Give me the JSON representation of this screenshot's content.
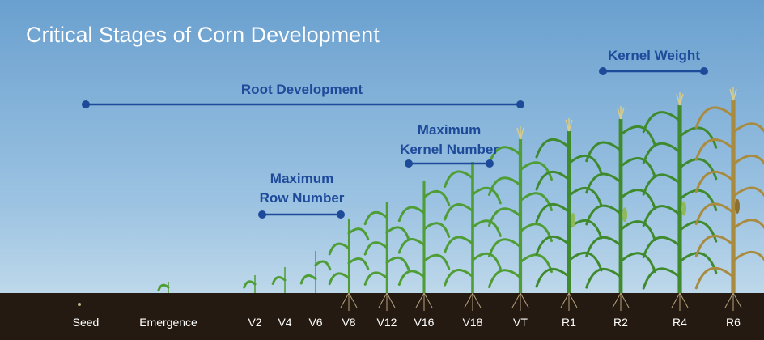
{
  "title": "Critical Stages of Corn Development",
  "stages": [
    "Seed",
    "Emergence",
    "V2",
    "V4",
    "V6",
    "V8",
    "V12",
    "V16",
    "V18",
    "VT",
    "R1",
    "R2",
    "R4",
    "R6"
  ],
  "ranges": [
    {
      "label": [
        "Root Development"
      ]
    },
    {
      "label": [
        "Kernel Weight"
      ]
    },
    {
      "label": [
        "Maximum",
        "Kernel Number"
      ]
    },
    {
      "label": [
        "Maximum",
        "Row Number"
      ]
    }
  ]
}
